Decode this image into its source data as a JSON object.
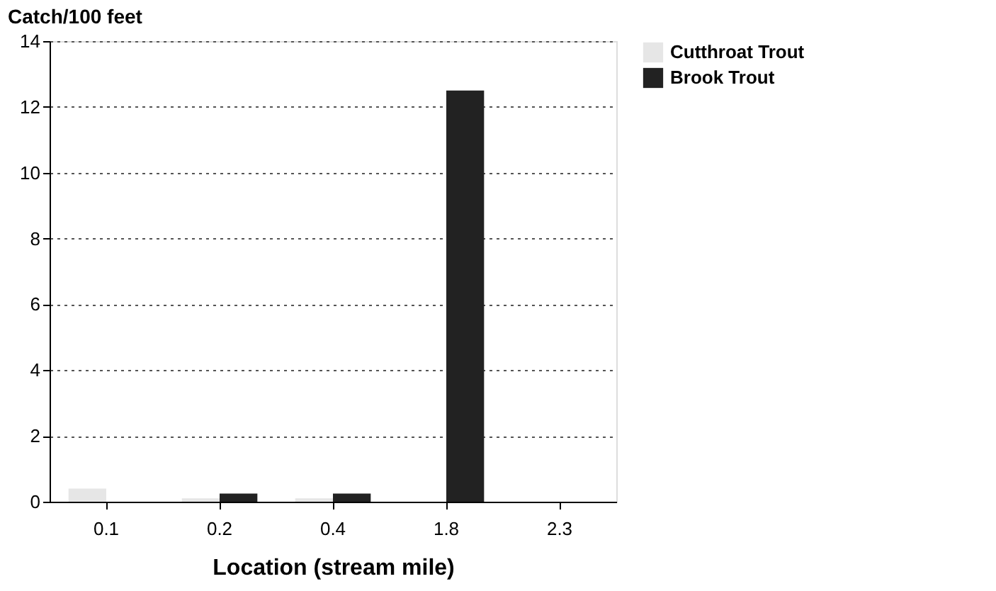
{
  "chart_data": {
    "type": "bar",
    "ylabel": "Catch/100 feet",
    "xlabel": "Location (stream mile)",
    "categories": [
      "0.1",
      "0.2",
      "0.4",
      "1.8",
      "2.3"
    ],
    "series": [
      {
        "name": "Cutthroat Trout",
        "color": "#e6e6e6",
        "values": [
          0.4,
          0.1,
          0.1,
          null,
          null
        ]
      },
      {
        "name": "Brook Trout",
        "color": "#222222",
        "values": [
          null,
          0.25,
          0.25,
          12.5,
          null
        ]
      }
    ],
    "ylim": [
      0,
      14
    ],
    "yticks": [
      0,
      2,
      4,
      6,
      8,
      10,
      12,
      14
    ],
    "grid": "y",
    "legend": "right"
  }
}
